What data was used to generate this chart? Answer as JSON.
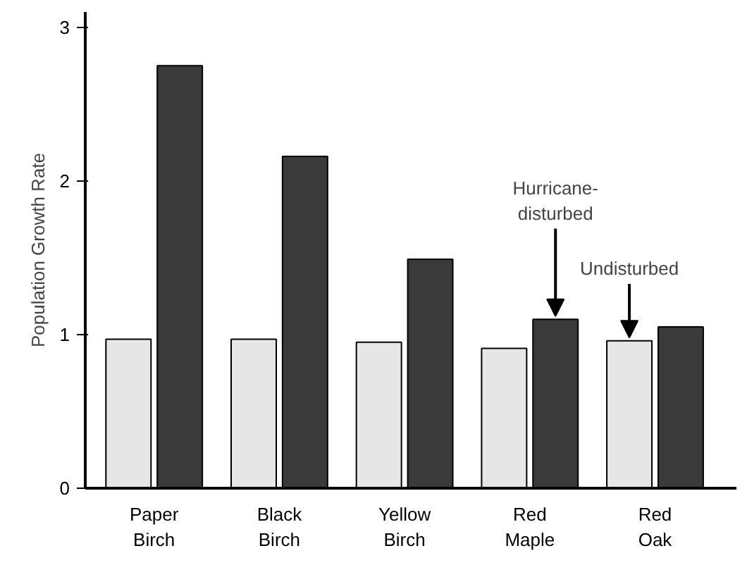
{
  "chart_data": {
    "type": "bar",
    "ylabel": "Population Growth Rate",
    "categories": [
      "Paper Birch",
      "Black Birch",
      "Yellow Birch",
      "Red Maple",
      "Red Oak"
    ],
    "series": [
      {
        "name": "Undisturbed",
        "color": "#e6e6e6",
        "values": [
          0.97,
          0.97,
          0.95,
          0.91,
          0.96
        ]
      },
      {
        "name": "Hurricane-disturbed",
        "color": "#3a3a3a",
        "values": [
          2.75,
          2.16,
          1.49,
          1.1,
          1.05
        ]
      }
    ],
    "ylim": [
      0,
      3.1
    ],
    "yticks": [
      0,
      1,
      2,
      3
    ],
    "grid": false,
    "legend": false
  }
}
